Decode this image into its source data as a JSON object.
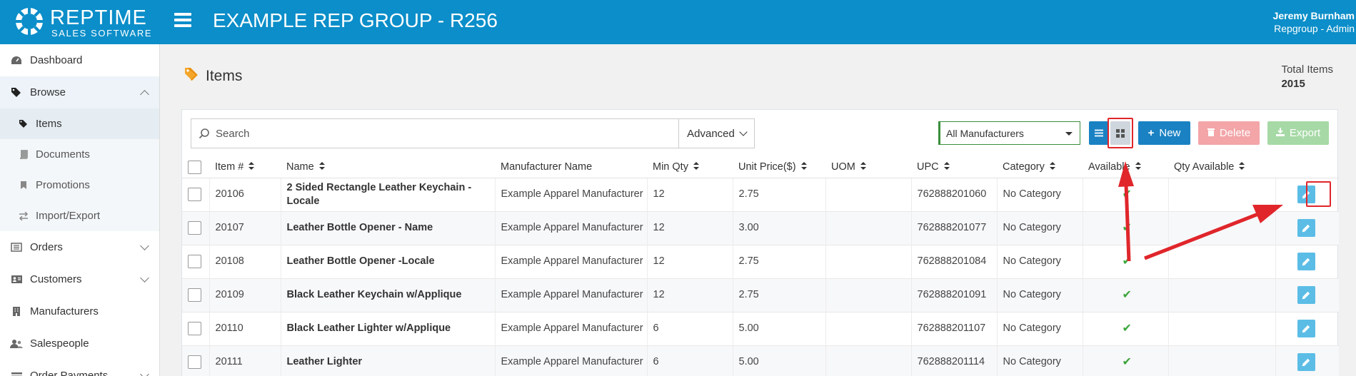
{
  "header": {
    "logo_title": "REPTIME",
    "logo_subtitle": "SALES SOFTWARE",
    "app_title": "EXAMPLE REP GROUP - R256",
    "user_name": "Jeremy Burnham",
    "user_role": "Repgroup - Admin"
  },
  "sidebar": {
    "dashboard": "Dashboard",
    "browse": "Browse",
    "browse_items": [
      "Items",
      "Documents",
      "Promotions",
      "Import/Export"
    ],
    "orders": "Orders",
    "customers": "Customers",
    "manufacturers": "Manufacturers",
    "salespeople": "Salespeople",
    "order_payments": "Order Payments"
  },
  "page": {
    "title": "Items",
    "total_label": "Total Items",
    "total_value": "2015"
  },
  "toolbar": {
    "search_placeholder": "Search",
    "advanced_label": "Advanced",
    "manufacturer_selected": "All Manufacturers",
    "new_label": "New",
    "delete_label": "Delete",
    "export_label": "Export"
  },
  "table": {
    "columns": [
      "Item #",
      "Name",
      "Manufacturer Name",
      "Min Qty",
      "Unit Price($)",
      "UOM",
      "UPC",
      "Category",
      "Available",
      "Qty Available"
    ],
    "rows": [
      {
        "item": "20106",
        "name": "2 Sided Rectangle Leather Keychain - Locale",
        "manufacturer": "Example Apparel Manufacturer",
        "min_qty": "12",
        "price": "2.75",
        "uom": "",
        "upc": "762888201060",
        "category": "No Category",
        "available": "✔",
        "qty_available": ""
      },
      {
        "item": "20107",
        "name": "Leather Bottle Opener - Name",
        "manufacturer": "Example Apparel Manufacturer",
        "min_qty": "12",
        "price": "3.00",
        "uom": "",
        "upc": "762888201077",
        "category": "No Category",
        "available": "✔",
        "qty_available": ""
      },
      {
        "item": "20108",
        "name": "Leather Bottle Opener -Locale",
        "manufacturer": "Example Apparel Manufacturer",
        "min_qty": "12",
        "price": "2.75",
        "uom": "",
        "upc": "762888201084",
        "category": "No Category",
        "available": "✔",
        "qty_available": ""
      },
      {
        "item": "20109",
        "name": "Black Leather Keychain w/Applique",
        "manufacturer": "Example Apparel Manufacturer",
        "min_qty": "12",
        "price": "2.75",
        "uom": "",
        "upc": "762888201091",
        "category": "No Category",
        "available": "✔",
        "qty_available": ""
      },
      {
        "item": "20110",
        "name": "Black Leather Lighter w/Applique",
        "manufacturer": "Example Apparel Manufacturer",
        "min_qty": "6",
        "price": "5.00",
        "uom": "",
        "upc": "762888201107",
        "category": "No Category",
        "available": "✔",
        "qty_available": ""
      },
      {
        "item": "20111",
        "name": "Leather Lighter",
        "manufacturer": "Example Apparel Manufacturer",
        "min_qty": "6",
        "price": "5.00",
        "uom": "",
        "upc": "762888201114",
        "category": "No Category",
        "available": "✔",
        "qty_available": ""
      }
    ]
  },
  "colors": {
    "brand": "#0b8ec9",
    "primary_button": "#1a82c3",
    "delete_button": "#f3a5a8",
    "export_button": "#a6d9a6",
    "edit_button": "#5bbde6",
    "annotation": "#e0262b"
  },
  "icons": {
    "logo": "gear-logo-icon",
    "menu": "hamburger-icon",
    "title": "tag-icon",
    "edit": "pencil-icon",
    "available": "check-icon"
  }
}
